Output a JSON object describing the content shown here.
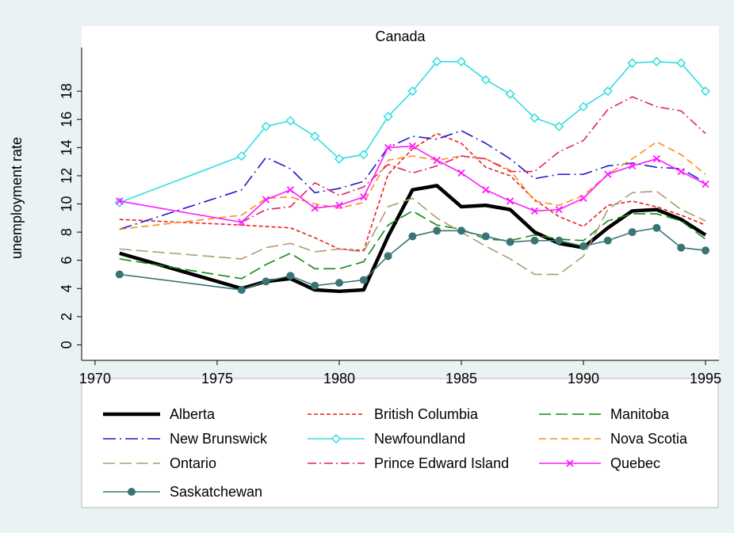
{
  "chart_data": {
    "type": "line",
    "title": "Canada",
    "y_label": "unemployment rate",
    "x": [
      1971,
      1976,
      1977,
      1978,
      1979,
      1980,
      1981,
      1982,
      1983,
      1984,
      1985,
      1986,
      1987,
      1988,
      1989,
      1990,
      1991,
      1992,
      1993,
      1994,
      1995
    ],
    "xlim": [
      1969.45,
      1995.55
    ],
    "xticks": [
      1970,
      1975,
      1980,
      1985,
      1990,
      1995
    ],
    "ylim": [
      -1.1,
      21.1
    ],
    "yticks": [
      0,
      2,
      4,
      6,
      8,
      10,
      12,
      14,
      16,
      18
    ],
    "series": [
      {
        "name": "Alberta",
        "color": "#000000",
        "line": "solid",
        "weight": "thick",
        "marker": "none",
        "values": [
          6.5,
          4.0,
          4.5,
          4.7,
          3.9,
          3.8,
          3.9,
          7.7,
          11.0,
          11.3,
          9.8,
          9.9,
          9.6,
          8.0,
          7.2,
          6.9,
          8.3,
          9.5,
          9.6,
          8.9,
          7.8
        ]
      },
      {
        "name": "British Columbia",
        "color": "#e8221c",
        "line": "shortdash",
        "weight": "normal",
        "marker": "none",
        "values": [
          8.9,
          8.5,
          8.4,
          8.3,
          7.6,
          6.8,
          6.7,
          12.1,
          13.9,
          15.0,
          14.3,
          12.6,
          12.0,
          10.3,
          9.1,
          8.4,
          9.9,
          10.2,
          9.8,
          9.2,
          8.5
        ]
      },
      {
        "name": "Manitoba",
        "color": "#118a11",
        "line": "longdash",
        "weight": "normal",
        "marker": "none",
        "values": [
          6.1,
          4.7,
          5.7,
          6.5,
          5.4,
          5.4,
          5.9,
          8.5,
          9.5,
          8.5,
          8.2,
          7.5,
          7.4,
          7.8,
          7.5,
          7.4,
          8.8,
          9.3,
          9.3,
          8.8,
          7.5
        ]
      },
      {
        "name": "New Brunswick",
        "color": "#1a1acc",
        "line": "longdashdot",
        "weight": "normal",
        "marker": "none",
        "values": [
          8.2,
          11.0,
          13.3,
          12.5,
          10.8,
          11.1,
          11.6,
          14.0,
          14.8,
          14.6,
          15.2,
          14.3,
          13.2,
          11.8,
          12.1,
          12.1,
          12.7,
          12.9,
          12.6,
          12.5,
          11.5
        ]
      },
      {
        "name": "Newfoundland",
        "color": "#33dde0",
        "line": "solid",
        "weight": "normal",
        "marker": "diamond",
        "values": [
          10.1,
          13.4,
          15.5,
          15.9,
          14.8,
          13.2,
          13.5,
          16.2,
          18.0,
          20.1,
          20.1,
          18.8,
          17.8,
          16.1,
          15.5,
          16.9,
          18.0,
          20.0,
          20.1,
          20.0,
          18.0
        ]
      },
      {
        "name": "Nova Scotia",
        "color": "#ff8c1a",
        "line": "dash",
        "weight": "normal",
        "marker": "none",
        "values": [
          8.2,
          9.2,
          10.4,
          10.5,
          10.0,
          9.7,
          10.1,
          13.1,
          13.4,
          13.1,
          13.4,
          13.2,
          12.4,
          10.2,
          9.9,
          10.6,
          12.1,
          13.2,
          14.4,
          13.5,
          12.1
        ]
      },
      {
        "name": "Ontario",
        "color": "#b09a74",
        "line": "longdash",
        "weight": "normal",
        "marker": "none",
        "values": [
          6.8,
          6.1,
          6.9,
          7.2,
          6.6,
          6.8,
          6.6,
          9.8,
          10.4,
          9.0,
          8.0,
          7.0,
          6.1,
          5.0,
          5.0,
          6.3,
          9.6,
          10.8,
          10.9,
          9.6,
          8.8
        ]
      },
      {
        "name": "Prince Edward Island",
        "color": "#e0206a",
        "line": "dashdot",
        "weight": "normal",
        "marker": "none",
        "values": [
          null,
          8.7,
          9.6,
          9.8,
          11.5,
          10.6,
          11.2,
          12.8,
          12.2,
          12.7,
          13.4,
          13.2,
          12.3,
          12.3,
          13.7,
          14.5,
          16.7,
          17.6,
          16.9,
          16.6,
          15.0
        ]
      },
      {
        "name": "Quebec",
        "color": "#ff1aff",
        "line": "solid",
        "weight": "normal",
        "marker": "x",
        "values": [
          10.2,
          8.7,
          10.3,
          11.0,
          9.7,
          9.9,
          10.5,
          14.0,
          14.1,
          13.1,
          12.2,
          11.0,
          10.2,
          9.5,
          9.6,
          10.4,
          12.1,
          12.7,
          13.2,
          12.3,
          11.4
        ]
      },
      {
        "name": "Saskatchewan",
        "color": "#3a7474",
        "line": "solid",
        "weight": "normal",
        "marker": "circle",
        "values": [
          5.0,
          3.9,
          4.5,
          4.9,
          4.2,
          4.4,
          4.6,
          6.3,
          7.7,
          8.1,
          8.1,
          7.7,
          7.3,
          7.4,
          7.4,
          7.0,
          7.4,
          8.0,
          8.3,
          6.9,
          6.7
        ]
      }
    ]
  }
}
